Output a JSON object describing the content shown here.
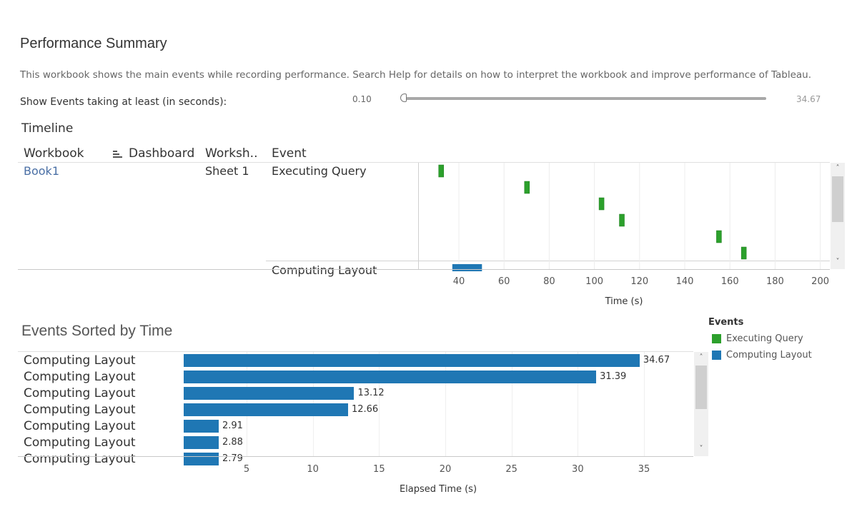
{
  "header": {
    "title": "Performance Summary",
    "description": "This workbook shows the main events while recording performance. Search Help for details on how to interpret the workbook and improve performance of Tableau."
  },
  "filter": {
    "label": "Show Events taking at least (in seconds):",
    "min_label": "0.10",
    "max_label": "34.67"
  },
  "timeline": {
    "section_title": "Timeline",
    "columns": [
      "Workbook",
      "Dashboard",
      "Worksh..",
      "Event"
    ],
    "rows": [
      {
        "workbook": "Book1",
        "dashboard": "",
        "worksheet": "Sheet 1",
        "event": "Executing Query"
      },
      {
        "workbook": "",
        "dashboard": "",
        "worksheet": "",
        "event": "Computing Layout"
      }
    ],
    "axis_title": "Time (s)",
    "ticks": [
      "40",
      "60",
      "80",
      "100",
      "120",
      "140",
      "160",
      "180",
      "200"
    ]
  },
  "events_sorted": {
    "section_title": "Events Sorted by Time",
    "axis_title": "Elapsed Time (s)",
    "ticks": [
      "5",
      "10",
      "15",
      "20",
      "25",
      "30",
      "35"
    ],
    "rows": [
      {
        "label": "Computing Layout",
        "value_label": "34.67"
      },
      {
        "label": "Computing Layout",
        "value_label": "31.39"
      },
      {
        "label": "Computing Layout",
        "value_label": "13.12"
      },
      {
        "label": "Computing Layout",
        "value_label": "12.66"
      },
      {
        "label": "Computing Layout",
        "value_label": "2.91"
      },
      {
        "label": "Computing Layout",
        "value_label": "2.88"
      },
      {
        "label": "Computing Layout",
        "value_label": "2.79"
      }
    ]
  },
  "legend": {
    "title": "Events",
    "items": [
      {
        "label": "Executing Query",
        "color": "#2ca02c"
      },
      {
        "label": "Computing Layout",
        "color": "#1f77b4"
      }
    ]
  },
  "chart_data": [
    {
      "type": "scatter",
      "title": "Timeline",
      "xlabel": "Time (s)",
      "xlim": [
        23,
        203
      ],
      "series": [
        {
          "name": "Executing Query",
          "color": "#2ca02c",
          "x": [
            32,
            70,
            103,
            112,
            155,
            166
          ],
          "duration": [
            0.4,
            0.3,
            0.3,
            0.3,
            0.3,
            0.3
          ]
        },
        {
          "name": "Computing Layout",
          "color": "#1f77b4",
          "x": [
            39
          ],
          "duration": [
            13.12
          ]
        }
      ]
    },
    {
      "type": "bar",
      "title": "Events Sorted by Time",
      "xlabel": "Elapsed Time (s)",
      "xlim": [
        0,
        38
      ],
      "categories": [
        "Computing Layout",
        "Computing Layout",
        "Computing Layout",
        "Computing Layout",
        "Computing Layout",
        "Computing Layout",
        "Computing Layout"
      ],
      "values": [
        34.67,
        31.39,
        13.12,
        12.66,
        2.91,
        2.88,
        2.79
      ],
      "color": "#1f77b4"
    }
  ]
}
